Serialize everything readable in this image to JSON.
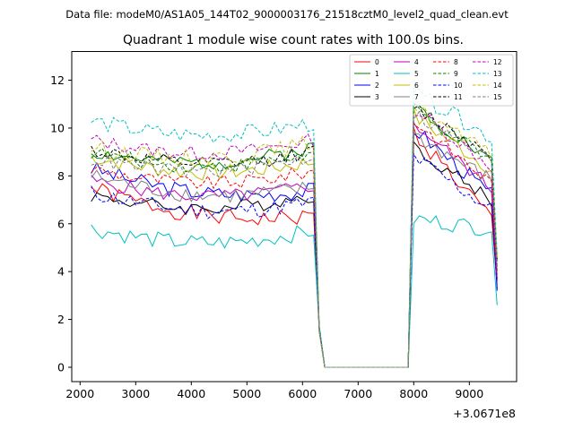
{
  "header": {
    "data_file": "Data file: modeM0/AS1A05_144T02_9000003176_21518cztM0_level2_quad_clean.evt"
  },
  "chart_data": {
    "type": "line",
    "title": "Quadrant 1 module wise count rates with 100.0s bins.",
    "xlabel": "",
    "ylabel": "",
    "x_offset_label": "+3.0671e8",
    "xlim": [
      1850,
      9850
    ],
    "ylim": [
      -0.6,
      13.2
    ],
    "xticks": [
      2000,
      3000,
      4000,
      5000,
      6000,
      7000,
      8000,
      9000
    ],
    "yticks": [
      0,
      2,
      4,
      6,
      8,
      10,
      12
    ],
    "xtick_labels": [
      "2000",
      "3000",
      "4000",
      "5000",
      "6000",
      "7000",
      "8000",
      "9000"
    ],
    "ytick_labels": [
      "0",
      "2",
      "4",
      "6",
      "8",
      "10",
      "12"
    ],
    "legend_position": "top-right",
    "segments": {
      "seg1_x": [
        2200,
        6200
      ],
      "drop_x": [
        6300,
        6400
      ],
      "gap_x": [
        6400,
        7900
      ],
      "rise_x": 8000,
      "seg2_x": [
        8000,
        9400
      ],
      "tail_x": 9500
    },
    "series": [
      {
        "name": "0",
        "color": "#ff0000",
        "dash": "solid",
        "seg1_start": 7.5,
        "seg1_end": 6.3,
        "seg2_start": 9.8,
        "seg2_end": 6.2,
        "tail": 3.4,
        "noise": 0.35
      },
      {
        "name": "1",
        "color": "#008000",
        "dash": "solid",
        "seg1_start": 9.0,
        "seg1_end": 9.2,
        "seg2_start": 11.0,
        "seg2_end": 8.6,
        "tail": 4.5,
        "noise": 0.3
      },
      {
        "name": "2",
        "color": "#0000ff",
        "dash": "solid",
        "seg1_start": 8.3,
        "seg1_end": 7.4,
        "seg2_start": 10.0,
        "seg2_end": 7.2,
        "tail": 3.2,
        "noise": 0.35
      },
      {
        "name": "3",
        "color": "#000000",
        "dash": "solid",
        "seg1_start": 7.2,
        "seg1_end": 7.2,
        "seg2_start": 9.2,
        "seg2_end": 7.0,
        "tail": 3.7,
        "noise": 0.3
      },
      {
        "name": "4",
        "color": "#bf00bf",
        "dash": "solid",
        "seg1_start": 7.8,
        "seg1_end": 7.6,
        "seg2_start": 10.2,
        "seg2_end": 7.5,
        "tail": 3.6,
        "noise": 0.3
      },
      {
        "name": "5",
        "color": "#00bfbf",
        "dash": "solid",
        "seg1_start": 5.8,
        "seg1_end": 5.7,
        "seg2_start": 6.2,
        "seg2_end": 5.8,
        "tail": 2.6,
        "noise": 0.35
      },
      {
        "name": "6",
        "color": "#bfbf00",
        "dash": "solid",
        "seg1_start": 8.8,
        "seg1_end": 8.6,
        "seg2_start": 10.5,
        "seg2_end": 8.3,
        "tail": 4.2,
        "noise": 0.35
      },
      {
        "name": "7",
        "color": "#808080",
        "dash": "solid",
        "seg1_start": 8.0,
        "seg1_end": 7.5,
        "seg2_start": 9.7,
        "seg2_end": 7.8,
        "tail": 4.0,
        "noise": 0.35
      },
      {
        "name": "8",
        "color": "#ff0000",
        "dash": "dashed",
        "seg1_start": 8.3,
        "seg1_end": 8.2,
        "seg2_start": 10.3,
        "seg2_end": 7.7,
        "tail": 3.9,
        "noise": 0.3
      },
      {
        "name": "9",
        "color": "#008000",
        "dash": "dashed",
        "seg1_start": 9.0,
        "seg1_end": 8.9,
        "seg2_start": 10.8,
        "seg2_end": 8.6,
        "tail": 4.3,
        "noise": 0.3
      },
      {
        "name": "10",
        "color": "#0000ff",
        "dash": "dashed",
        "seg1_start": 7.3,
        "seg1_end": 6.9,
        "seg2_start": 8.8,
        "seg2_end": 6.6,
        "tail": 3.3,
        "noise": 0.35
      },
      {
        "name": "11",
        "color": "#000000",
        "dash": "dashed",
        "seg1_start": 9.1,
        "seg1_end": 9.0,
        "seg2_start": 10.9,
        "seg2_end": 8.9,
        "tail": 4.4,
        "noise": 0.3
      },
      {
        "name": "12",
        "color": "#bf00bf",
        "dash": "dashed",
        "seg1_start": 9.5,
        "seg1_end": 9.5,
        "seg2_start": 10.8,
        "seg2_end": 8.4,
        "tail": 4.1,
        "noise": 0.3
      },
      {
        "name": "13",
        "color": "#00bfbf",
        "dash": "dashed",
        "seg1_start": 10.3,
        "seg1_end": 10.2,
        "seg2_start": 11.5,
        "seg2_end": 9.6,
        "tail": 4.7,
        "noise": 0.35
      },
      {
        "name": "14",
        "color": "#bfbf00",
        "dash": "dashed",
        "seg1_start": 9.2,
        "seg1_end": 9.4,
        "seg2_start": 10.9,
        "seg2_end": 8.8,
        "tail": 4.6,
        "noise": 0.35
      },
      {
        "name": "15",
        "color": "#808080",
        "dash": "dashed",
        "seg1_start": 8.7,
        "seg1_end": 8.8,
        "seg2_start": 10.6,
        "seg2_end": 8.6,
        "tail": 4.2,
        "noise": 0.3
      }
    ]
  }
}
